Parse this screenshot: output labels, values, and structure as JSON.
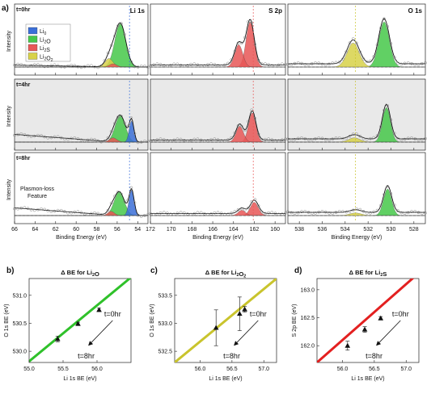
{
  "panel_labels": {
    "a": "a)",
    "b": "b)",
    "c": "c)",
    "d": "d)"
  },
  "spectra": {
    "ylabel": "Intensity",
    "time_labels": [
      "t=0hr",
      "t=4hr",
      "t=8hr"
    ],
    "annotation": "Plasmon-loss\nFeature",
    "legend": [
      {
        "label": "Li0",
        "color": "#3b6fd8"
      },
      {
        "label": "Li2O",
        "color": "#46c84a"
      },
      {
        "label": "Li2S",
        "color": "#e85757"
      },
      {
        "label": "Li2O2",
        "color": "#d8d24a"
      }
    ],
    "columns": [
      {
        "title": "Li 1s",
        "xlabel": "Binding Energy (eV)",
        "xlim": [
          66,
          53
        ],
        "ticks": [
          66,
          64,
          62,
          60,
          58,
          56,
          54
        ]
      },
      {
        "title": "S 2p",
        "xlabel": "Binding Energy (eV)",
        "xlim": [
          172,
          159
        ],
        "ticks": [
          172,
          170,
          168,
          166,
          164,
          162,
          160
        ]
      },
      {
        "title": "O 1s",
        "xlabel": "Binding Energy (eV)",
        "xlim": [
          539,
          527
        ],
        "ticks": [
          538,
          536,
          534,
          532,
          530,
          528
        ]
      }
    ]
  },
  "chart_data": [
    {
      "type": "scatter",
      "title": "Δ BE for Li2O",
      "xlabel": "Li 1s BE (eV)",
      "ylabel": "O 1s BE (eV)",
      "xlim": [
        55.0,
        56.5
      ],
      "ylim": [
        529.8,
        531.3
      ],
      "xticks": [
        55.0,
        55.5,
        56.0
      ],
      "yticks": [
        530.0,
        530.5,
        531.0
      ],
      "points": [
        {
          "x": 55.42,
          "y": 530.22,
          "err": 0.05
        },
        {
          "x": 55.72,
          "y": 530.49,
          "err": 0.03
        },
        {
          "x": 56.03,
          "y": 530.74,
          "err": 0.03
        }
      ],
      "fit_line": [
        [
          55.0,
          529.82
        ],
        [
          56.5,
          531.32
        ]
      ],
      "color": "#2fc12a",
      "arrow_labels": [
        "t=0hr",
        "t=8hr"
      ]
    },
    {
      "type": "scatter",
      "title": "Δ BE for Li2O2",
      "xlabel": "Li 1s BE (eV)",
      "ylabel": "O 1s BE (eV)",
      "xlim": [
        55.6,
        57.2
      ],
      "ylim": [
        532.3,
        533.8
      ],
      "xticks": [
        56.0,
        56.5,
        57.0
      ],
      "yticks": [
        532.5,
        533.0,
        533.5
      ],
      "points": [
        {
          "x": 56.25,
          "y": 532.92,
          "err": 0.32
        },
        {
          "x": 56.62,
          "y": 533.17,
          "err": 0.3
        },
        {
          "x": 56.7,
          "y": 533.25,
          "err": 0.05
        }
      ],
      "fit_line": [
        [
          55.6,
          532.3
        ],
        [
          57.2,
          533.8
        ]
      ],
      "color": "#c9c42d",
      "arrow_labels": [
        "t=0hr",
        "t=8hr"
      ]
    },
    {
      "type": "scatter",
      "title": "Δ BE for Li2S",
      "xlabel": "Li 1s BE (eV)",
      "ylabel": "S 2p BE (eV)",
      "xlim": [
        55.6,
        57.2
      ],
      "ylim": [
        161.7,
        163.2
      ],
      "xticks": [
        56.0,
        56.5,
        57.0
      ],
      "yticks": [
        162.0,
        162.5,
        163.0
      ],
      "points": [
        {
          "x": 56.08,
          "y": 162.0,
          "err": 0.08
        },
        {
          "x": 56.35,
          "y": 162.29,
          "err": 0.05
        },
        {
          "x": 56.6,
          "y": 162.49,
          "err": 0.03
        }
      ],
      "fit_line": [
        [
          55.6,
          161.7
        ],
        [
          57.2,
          163.3
        ]
      ],
      "color": "#e32020",
      "arrow_labels": [
        "t=0hr",
        "t=8hr"
      ]
    }
  ]
}
